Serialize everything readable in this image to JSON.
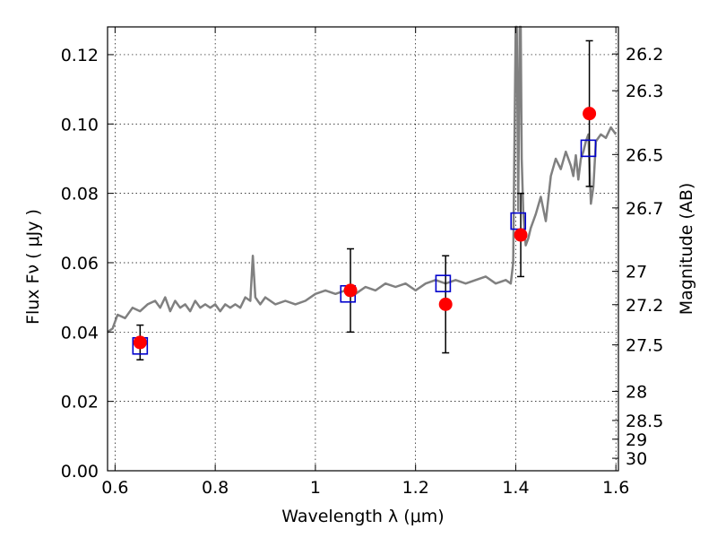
{
  "chart_data": {
    "type": "scatter",
    "xlabel": "Wavelength  λ (μm)",
    "ylabel": "Flux  Fν  ( μJy )",
    "y2label": "Magnitude (AB)",
    "xlim": [
      0.585,
      1.605
    ],
    "ylim": [
      0.0,
      0.128
    ],
    "grid": true,
    "x_ticks": [
      0.6,
      0.8,
      1.0,
      1.2,
      1.4,
      1.6
    ],
    "x_tick_labels": [
      "0.6",
      "0.8",
      "1",
      "1.2",
      "1.4",
      "1.6"
    ],
    "y_ticks": [
      0.0,
      0.02,
      0.04,
      0.06,
      0.08,
      0.1,
      0.12
    ],
    "y_tick_labels": [
      "0.00",
      "0.02",
      "0.04",
      "0.06",
      "0.08",
      "0.10",
      "0.12"
    ],
    "mag_ticks": [
      {
        "label": "26.2",
        "flux": 0.1202
      },
      {
        "label": "26.3",
        "flux": 0.1096
      },
      {
        "label": "26.5",
        "flux": 0.0912
      },
      {
        "label": "26.7",
        "flux": 0.0758
      },
      {
        "label": "27",
        "flux": 0.0575
      },
      {
        "label": "27.2",
        "flux": 0.0479
      },
      {
        "label": "27.5",
        "flux": 0.0363
      },
      {
        "label": "28",
        "flux": 0.0229
      },
      {
        "label": "28.5",
        "flux": 0.0145
      },
      {
        "label": "29",
        "flux": 0.0091
      },
      {
        "label": "30",
        "flux": 0.0036
      }
    ],
    "spectrum": {
      "color": "#808080",
      "x": [
        0.585,
        0.595,
        0.605,
        0.62,
        0.635,
        0.65,
        0.665,
        0.68,
        0.69,
        0.7,
        0.71,
        0.72,
        0.73,
        0.74,
        0.75,
        0.76,
        0.77,
        0.78,
        0.79,
        0.8,
        0.81,
        0.82,
        0.83,
        0.84,
        0.85,
        0.86,
        0.87,
        0.875,
        0.88,
        0.885,
        0.89,
        0.9,
        0.92,
        0.94,
        0.96,
        0.98,
        1.0,
        1.02,
        1.04,
        1.06,
        1.08,
        1.1,
        1.12,
        1.14,
        1.16,
        1.18,
        1.2,
        1.22,
        1.24,
        1.26,
        1.28,
        1.3,
        1.32,
        1.34,
        1.36,
        1.38,
        1.39,
        1.395,
        1.4,
        1.402,
        1.405,
        1.408,
        1.41,
        1.412,
        1.415,
        1.418,
        1.42,
        1.425,
        1.43,
        1.44,
        1.45,
        1.46,
        1.47,
        1.48,
        1.49,
        1.5,
        1.51,
        1.515,
        1.52,
        1.525,
        1.53,
        1.535,
        1.54,
        1.545,
        1.55,
        1.555,
        1.56,
        1.57,
        1.58,
        1.59,
        1.6
      ],
      "y": [
        0.04,
        0.041,
        0.045,
        0.044,
        0.047,
        0.046,
        0.048,
        0.049,
        0.047,
        0.05,
        0.046,
        0.049,
        0.047,
        0.048,
        0.046,
        0.049,
        0.047,
        0.048,
        0.047,
        0.048,
        0.046,
        0.048,
        0.047,
        0.048,
        0.047,
        0.05,
        0.049,
        0.062,
        0.05,
        0.049,
        0.048,
        0.05,
        0.048,
        0.049,
        0.048,
        0.049,
        0.051,
        0.052,
        0.051,
        0.052,
        0.051,
        0.053,
        0.052,
        0.054,
        0.053,
        0.054,
        0.052,
        0.054,
        0.055,
        0.054,
        0.055,
        0.054,
        0.055,
        0.056,
        0.054,
        0.055,
        0.054,
        0.06,
        0.128,
        0.128,
        0.075,
        0.128,
        0.128,
        0.09,
        0.075,
        0.068,
        0.065,
        0.067,
        0.07,
        0.074,
        0.079,
        0.072,
        0.085,
        0.09,
        0.087,
        0.092,
        0.088,
        0.085,
        0.091,
        0.084,
        0.09,
        0.092,
        0.095,
        0.097,
        0.077,
        0.082,
        0.095,
        0.097,
        0.096,
        0.099,
        0.097
      ]
    },
    "model_photometry": {
      "color": "#0000cc",
      "x": [
        0.65,
        1.065,
        1.255,
        1.405,
        1.545
      ],
      "y": [
        0.036,
        0.051,
        0.054,
        0.072,
        0.093
      ]
    },
    "observed": {
      "color": "#ff0000",
      "x": [
        0.65,
        1.07,
        1.26,
        1.41,
        1.547
      ],
      "y": [
        0.037,
        0.052,
        0.048,
        0.068,
        0.103
      ],
      "yerr": [
        0.005,
        0.012,
        0.014,
        0.012,
        0.021
      ]
    }
  }
}
